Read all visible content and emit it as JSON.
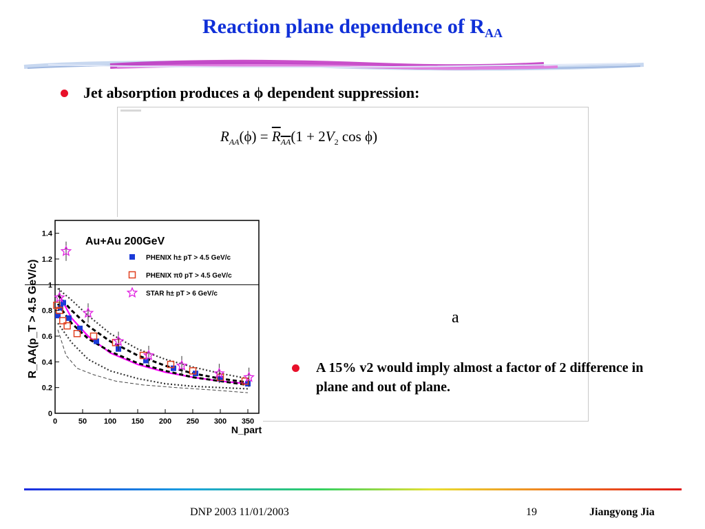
{
  "slide": {
    "title_main": "Reaction plane dependence of R",
    "title_sub": "AA",
    "bullet_main": "Jet absorption produces a ϕ dependent suppression:",
    "bullet_side": "A 15% v2 would imply almost a factor of 2 difference in plane and out of plane.",
    "stray_text": "a",
    "bullet_color": "#e8102a",
    "title_color": "#1030d8"
  },
  "formula": {
    "lhs_symbol": "R",
    "lhs_sub": "AA",
    "lhs_arg": "(ϕ) = ",
    "rhs_symbol": "R",
    "rhs_sub": "AA",
    "rhs_open": "(1 + 2",
    "v_symbol": "V",
    "v_sub": "2",
    "rhs_close": " cos ϕ)"
  },
  "chart_data": {
    "type": "scatter",
    "title": "Au+Au 200GeV",
    "xlabel": "N_part",
    "ylabel": "R_AA(p_T > 4.5 GeV/c)",
    "xlim": [
      0,
      370
    ],
    "ylim": [
      0,
      1.5
    ],
    "x_ticks": [
      "0",
      "50",
      "100",
      "150",
      "200",
      "250",
      "300",
      "350"
    ],
    "y_ticks": [
      "0",
      "0.2",
      "0.4",
      "0.6",
      "0.8",
      "1",
      "1.2",
      "1.4"
    ],
    "legend_position": "top-right",
    "series": [
      {
        "name": "PHENIX h± pT > 4.5 GeV/c",
        "marker": "filled-square",
        "color": "#1a3ad8",
        "x": [
          5,
          10,
          15,
          25,
          45,
          75,
          115,
          165,
          215,
          255,
          300,
          350
        ],
        "y": [
          0.76,
          0.82,
          0.86,
          0.74,
          0.66,
          0.56,
          0.5,
          0.41,
          0.35,
          0.31,
          0.27,
          0.23
        ]
      },
      {
        "name": "PHENIX π0 pT > 4.5 GeV/c",
        "marker": "open-square",
        "color": "#e04020",
        "x": [
          3,
          8,
          14,
          22,
          40,
          70,
          110,
          160,
          210,
          250,
          300,
          345
        ],
        "y": [
          0.84,
          0.8,
          0.72,
          0.68,
          0.62,
          0.6,
          0.55,
          0.45,
          0.38,
          0.33,
          0.28,
          0.25
        ]
      },
      {
        "name": "STAR h± pT > 6 GeV/c",
        "marker": "open-star",
        "color": "#e020e0",
        "x": [
          8,
          20,
          60,
          115,
          170,
          230,
          298,
          352
        ],
        "y": [
          0.9,
          1.26,
          0.78,
          0.56,
          0.45,
          0.37,
          0.31,
          0.28
        ]
      }
    ],
    "curves": [
      {
        "name": "magenta-fit",
        "color": "#ff00ff",
        "x": [
          10,
          30,
          60,
          100,
          150,
          200,
          250,
          300,
          350
        ],
        "y": [
          0.9,
          0.74,
          0.6,
          0.47,
          0.38,
          0.32,
          0.28,
          0.25,
          0.23
        ]
      },
      {
        "name": "band-upper-dotted",
        "color": "#333333",
        "x": [
          5,
          30,
          60,
          100,
          150,
          200,
          250,
          300,
          350
        ],
        "y": [
          0.97,
          0.88,
          0.76,
          0.62,
          0.5,
          0.42,
          0.36,
          0.31,
          0.27
        ]
      },
      {
        "name": "band-lower-dotted",
        "color": "#333333",
        "x": [
          5,
          30,
          60,
          100,
          150,
          200,
          250,
          300,
          350
        ],
        "y": [
          0.7,
          0.55,
          0.42,
          0.33,
          0.27,
          0.23,
          0.21,
          0.2,
          0.19
        ]
      },
      {
        "name": "model-dashed-1",
        "color": "#000000",
        "x": [
          5,
          30,
          60,
          100,
          150,
          200,
          250,
          300,
          350
        ],
        "y": [
          0.92,
          0.8,
          0.68,
          0.56,
          0.45,
          0.37,
          0.31,
          0.27,
          0.24
        ]
      },
      {
        "name": "model-dashed-2",
        "color": "#000000",
        "x": [
          5,
          30,
          60,
          100,
          150,
          200,
          250,
          300,
          350
        ],
        "y": [
          0.85,
          0.7,
          0.58,
          0.48,
          0.39,
          0.33,
          0.28,
          0.25,
          0.22
        ]
      },
      {
        "name": "model-thin-dashed",
        "color": "#444444",
        "x": [
          5,
          20,
          40,
          70,
          110,
          160,
          220,
          290,
          350
        ],
        "y": [
          0.65,
          0.45,
          0.35,
          0.3,
          0.25,
          0.22,
          0.2,
          0.18,
          0.16
        ]
      }
    ],
    "reference_line_y": 1
  },
  "footer": {
    "date": "DNP 2003 11/01/2003",
    "page": "19",
    "author": "Jiangyong Jia"
  }
}
